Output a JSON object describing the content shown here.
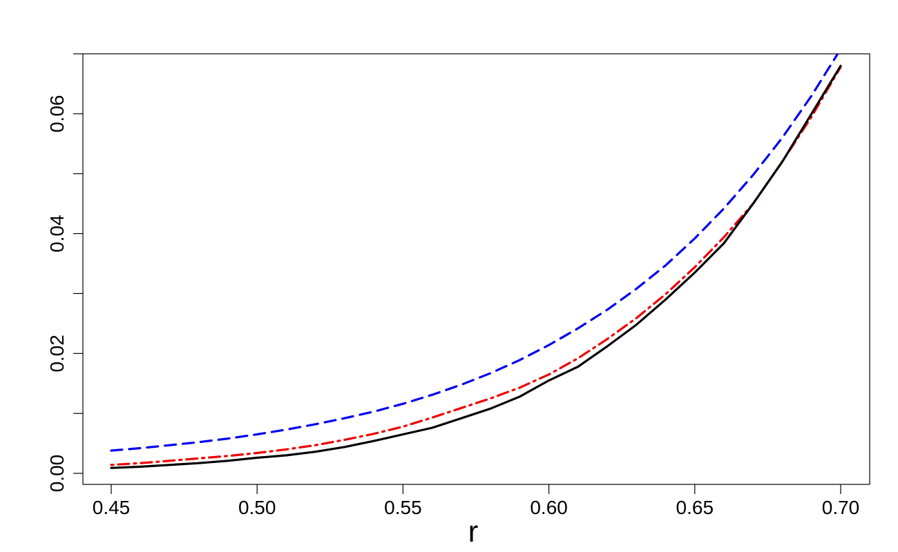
{
  "chart_data": {
    "type": "line",
    "title": "",
    "xlabel": "r",
    "ylabel": "",
    "xlim": [
      0.45,
      0.7
    ],
    "ylim": [
      0.0,
      0.07
    ],
    "xticks": [
      "0.45",
      "0.50",
      "0.55",
      "0.60",
      "0.65",
      "0.70"
    ],
    "yticks": [
      "0.00",
      "0.02",
      "0.04",
      "0.06"
    ],
    "grid": false,
    "x": [
      0.45,
      0.46,
      0.47,
      0.48,
      0.49,
      0.5,
      0.51,
      0.52,
      0.53,
      0.54,
      0.55,
      0.56,
      0.57,
      0.58,
      0.59,
      0.6,
      0.61,
      0.62,
      0.63,
      0.64,
      0.65,
      0.66,
      0.67,
      0.68,
      0.69,
      0.7
    ],
    "series": [
      {
        "color": "#0000ee",
        "style": "dashed",
        "values": [
          0.0038,
          0.0042,
          0.0047,
          0.0052,
          0.0058,
          0.0065,
          0.0073,
          0.0082,
          0.0092,
          0.0103,
          0.0116,
          0.0131,
          0.0148,
          0.0167,
          0.0189,
          0.0214,
          0.0242,
          0.0273,
          0.0308,
          0.0347,
          0.0392,
          0.0442,
          0.0498,
          0.056,
          0.063,
          0.0708
        ]
      },
      {
        "color": "#ee0000",
        "style": "dotdash",
        "values": [
          0.0014,
          0.0017,
          0.0021,
          0.0025,
          0.0029,
          0.0034,
          0.004,
          0.0047,
          0.0056,
          0.0066,
          0.0078,
          0.0093,
          0.0109,
          0.0125,
          0.0143,
          0.0165,
          0.0192,
          0.0224,
          0.0259,
          0.0299,
          0.0344,
          0.0394,
          0.045,
          0.052,
          0.0595,
          0.0678
        ]
      },
      {
        "color": "#000000",
        "style": "solid",
        "values": [
          0.0009,
          0.0011,
          0.0014,
          0.0017,
          0.0021,
          0.0026,
          0.003,
          0.0036,
          0.0044,
          0.0054,
          0.0065,
          0.0076,
          0.0092,
          0.0108,
          0.0128,
          0.0155,
          0.0178,
          0.0212,
          0.0248,
          0.029,
          0.0335,
          0.0384,
          0.045,
          0.052,
          0.06,
          0.068
        ]
      }
    ]
  }
}
